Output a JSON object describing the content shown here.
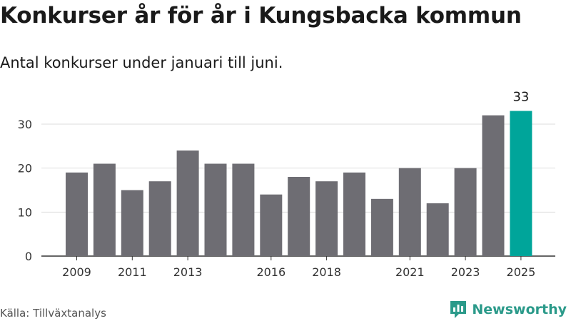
{
  "header": {
    "title": "Konkurser år för år i Kungsbacka kommun",
    "subtitle": "Antal konkurser under januari till juni."
  },
  "footer": {
    "source": "Källa: Tillväxtanalys",
    "brand": "Newsworthy",
    "brand_icon": "bar-chart-speech-bubble-icon"
  },
  "colors": {
    "bar": "#6e6d73",
    "highlight": "#00a59a",
    "grid": "#dddddd",
    "axis": "#333333",
    "brand": "#2b9a8a"
  },
  "chart_data": {
    "type": "bar",
    "categories": [
      "2009",
      "2010",
      "2011",
      "2012",
      "2013",
      "2014",
      "2015",
      "2016",
      "2017",
      "2018",
      "2019",
      "2020",
      "2021",
      "2022",
      "2023",
      "2024",
      "2025"
    ],
    "values": [
      19,
      21,
      15,
      17,
      24,
      21,
      21,
      14,
      18,
      17,
      19,
      13,
      20,
      12,
      20,
      32,
      33
    ],
    "x_tick_labels": [
      "2009",
      "2011",
      "2013",
      "2016",
      "2018",
      "2021",
      "2023",
      "2025"
    ],
    "y_ticks": [
      0,
      10,
      20,
      30
    ],
    "ylim": [
      0,
      36
    ],
    "highlight_category": "2025",
    "data_labels": [
      {
        "category": "2025",
        "text": "33"
      }
    ],
    "grid": true,
    "xlabel": "",
    "ylabel": ""
  }
}
